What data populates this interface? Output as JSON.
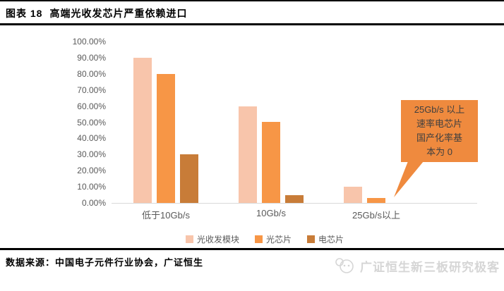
{
  "header": {
    "figure_label": "图表 18",
    "figure_title": "高端光收发芯片严重依赖进口"
  },
  "chart_data": {
    "type": "bar",
    "title": "高端光收发芯片严重依赖进口",
    "categories": [
      "低于10Gb/s",
      "10Gb/s",
      "25Gb/s以上"
    ],
    "series": [
      {
        "name": "光收发模块",
        "color": "#F8C5AB",
        "values": [
          90,
          60,
          10
        ]
      },
      {
        "name": "光芯片",
        "color": "#F79646",
        "values": [
          80,
          50,
          3
        ]
      },
      {
        "name": "电芯片",
        "color": "#C87C38",
        "values": [
          30,
          5,
          0
        ]
      }
    ],
    "xlabel": "",
    "ylabel": "",
    "ylim": [
      0,
      100
    ],
    "ytick_step": 10,
    "ytick_format": "0.00%",
    "grid": false,
    "legend_position": "bottom",
    "axis_text_color": "#595959",
    "axis_line_color": "#d9d9d9",
    "annotation": {
      "text": "25Gb/s 以上速率电芯片国产化率基本为 0",
      "lines": [
        "25Gb/s 以上",
        "速率电芯片",
        "国产化率基",
        "本为 0"
      ],
      "bg_color": "#EF8A3E",
      "text_color": "#3F3F3F",
      "points_to_category": "25Gb/s以上"
    }
  },
  "footer": {
    "source": "数据来源：中国电子元件行业协会，广证恒生"
  },
  "watermark": {
    "icon": "panda-logo-icon",
    "text": "广证恒生新三板研究极客"
  }
}
